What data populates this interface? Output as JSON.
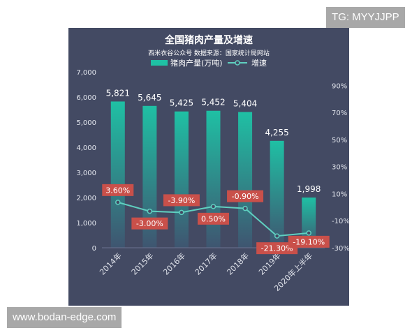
{
  "watermarks": {
    "top_right": "TG: MYYJJPP",
    "bottom_left": "www.bodan-edge.com"
  },
  "chart_data": {
    "type": "bar",
    "title": "全国猪肉产量及增速",
    "subtitle": "西米衣谷公众号  数据来源：国家统计局网站",
    "categories": [
      "2014年",
      "2015年",
      "2016年",
      "2017年",
      "2018年",
      "2019年",
      "2020年上半年"
    ],
    "series": [
      {
        "name": "猪肉产量(万吨)",
        "kind": "bar",
        "axis": "left",
        "values": [
          5821,
          5645,
          5425,
          5452,
          5404,
          4255,
          1998
        ],
        "labels": [
          "5,821",
          "5,645",
          "5,425",
          "5,452",
          "5,404",
          "4,255",
          "1,998"
        ]
      },
      {
        "name": "增速",
        "kind": "line",
        "axis": "right",
        "values": [
          3.6,
          -3.0,
          -3.9,
          0.5,
          -0.9,
          -21.3,
          -19.1
        ],
        "labels": [
          "3.60%",
          "-3.00%",
          "-3.90%",
          "0.50%",
          "-0.90%",
          "-21.30%",
          "-19.10%"
        ]
      }
    ],
    "y_left": {
      "range": [
        0,
        7000
      ],
      "ticks": [
        0,
        1000,
        2000,
        3000,
        4000,
        5000,
        6000,
        7000
      ],
      "tick_labels": [
        "0",
        "1,000",
        "2,000",
        "3,000",
        "4,000",
        "5,000",
        "6,000",
        "7,000"
      ]
    },
    "y_right": {
      "range": [
        -30,
        100
      ],
      "ticks": [
        -30,
        -10,
        10,
        30,
        50,
        70,
        90
      ],
      "tick_labels": [
        "-30%",
        "-10%",
        "10%",
        "30%",
        "50%",
        "70%",
        "90%"
      ]
    },
    "legend_position": "top",
    "grid": false,
    "colors": {
      "background": "#434a63",
      "bar_top": "#1fc0a4",
      "bar_bottom": "#3f5570",
      "line": "#5fd0c0",
      "label_box": "#c9504a",
      "text": "#ffffff",
      "axis_text": "#dfe2ea"
    }
  }
}
